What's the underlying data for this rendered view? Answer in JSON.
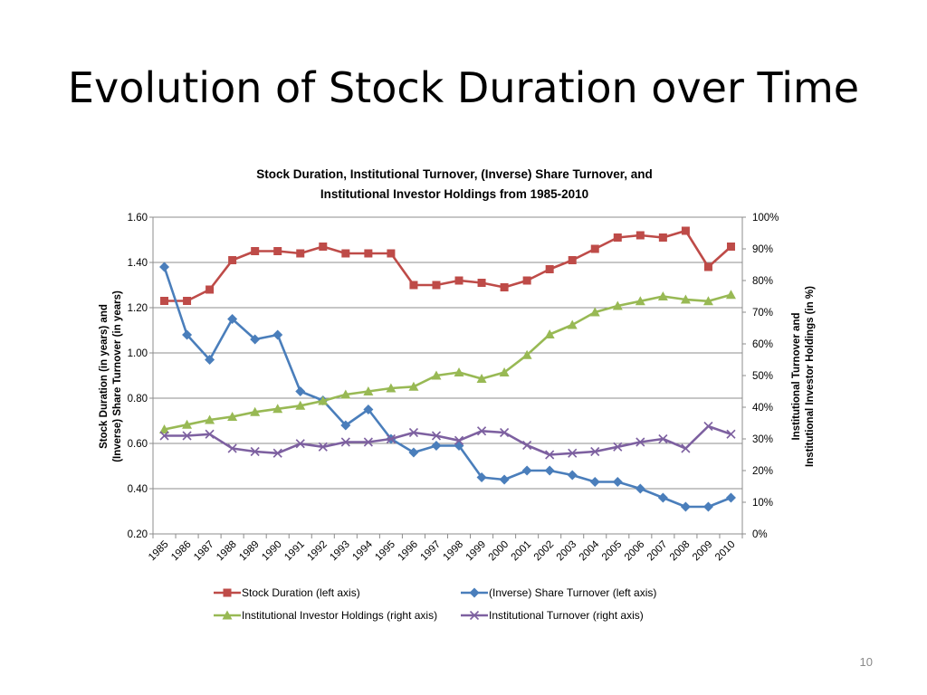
{
  "slide": {
    "title": "Evolution of Stock Duration over Time",
    "page_number": "10"
  },
  "chart_data": {
    "type": "line",
    "title_lines": [
      "Stock Duration, Institutional Turnover, (Inverse) Share Turnover, and",
      "Institutional Investor Holdings from 1985-2010"
    ],
    "x": [
      "1985",
      "1986",
      "1987",
      "1988",
      "1989",
      "1990",
      "1991",
      "1992",
      "1993",
      "1994",
      "1995",
      "1996",
      "1997",
      "1998",
      "1999",
      "2000",
      "2001",
      "2002",
      "2003",
      "2004",
      "2005",
      "2006",
      "2007",
      "2008",
      "2009",
      "2010"
    ],
    "y_left": {
      "label_lines": [
        "Stock Duration (in years) and",
        "(Inverse) Share Turnover (in years)"
      ],
      "range": [
        0.2,
        1.6
      ],
      "ticks": [
        "0.20",
        "0.40",
        "0.60",
        "0.80",
        "1.00",
        "1.20",
        "1.40",
        "1.60"
      ]
    },
    "y_right": {
      "label_lines": [
        "Institutional Turnover and",
        "Institutional Investor Holdings (in %)"
      ],
      "range": [
        0,
        100
      ],
      "ticks": [
        "0%",
        "10%",
        "20%",
        "30%",
        "40%",
        "50%",
        "60%",
        "70%",
        "80%",
        "90%",
        "100%"
      ]
    },
    "grid": true,
    "legend_position": "bottom",
    "series": [
      {
        "name": "Stock Duration (left axis)",
        "axis": "left",
        "color": "#be4b48",
        "marker": "square",
        "values": [
          1.23,
          1.23,
          1.28,
          1.41,
          1.45,
          1.45,
          1.44,
          1.47,
          1.44,
          1.44,
          1.44,
          1.3,
          1.3,
          1.32,
          1.31,
          1.29,
          1.32,
          1.37,
          1.41,
          1.46,
          1.51,
          1.52,
          1.51,
          1.54,
          1.38,
          1.47
        ]
      },
      {
        "name": "(Inverse) Share Turnover (left axis)",
        "axis": "left",
        "color": "#4a7ebb",
        "marker": "diamond",
        "values": [
          1.38,
          1.08,
          0.97,
          1.15,
          1.06,
          1.08,
          0.83,
          0.79,
          0.68,
          0.75,
          0.62,
          0.56,
          0.59,
          0.59,
          0.45,
          0.44,
          0.48,
          0.48,
          0.46,
          0.43,
          0.43,
          0.4,
          0.36,
          0.32,
          0.32,
          0.36
        ]
      },
      {
        "name": "Institutional Investor Holdings (right axis)",
        "axis": "right",
        "color": "#98b954",
        "marker": "triangle",
        "values": [
          33,
          34.5,
          36,
          37,
          38.5,
          39.5,
          40.5,
          42,
          44,
          45,
          46,
          46.5,
          50,
          51,
          49,
          51,
          56.5,
          63,
          66,
          70,
          72,
          73.5,
          75,
          74,
          73.5,
          75.5
        ]
      },
      {
        "name": "Institutional Turnover (right axis)",
        "axis": "right",
        "color": "#7d60a0",
        "marker": "x",
        "values": [
          31,
          31,
          31.5,
          27,
          26,
          25.5,
          28.5,
          27.5,
          29,
          29,
          30,
          32,
          31,
          29.5,
          32.5,
          32,
          28,
          25,
          25.5,
          26,
          27.5,
          29,
          30,
          27,
          34,
          31.5
        ]
      }
    ]
  }
}
